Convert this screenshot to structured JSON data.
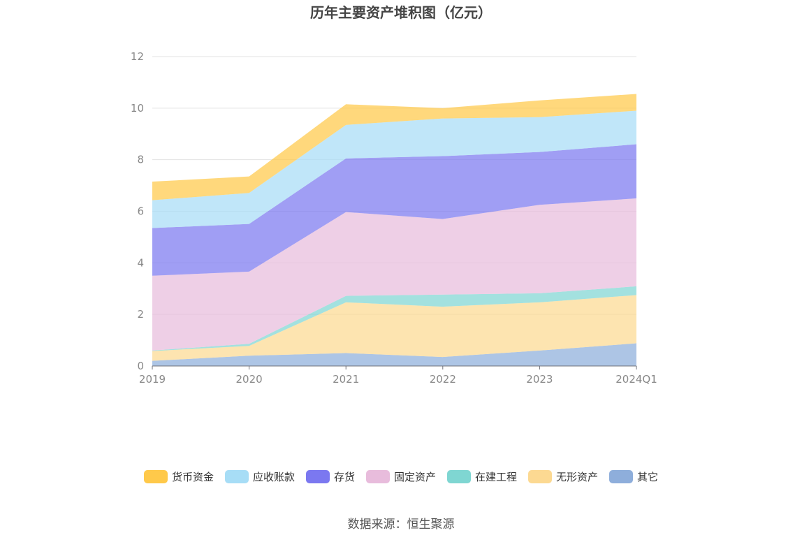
{
  "chart_data": {
    "type": "area",
    "stacked": true,
    "title": "历年主要资产堆积图（亿元）",
    "xlabel": "",
    "ylabel": "",
    "categories": [
      "2019",
      "2020",
      "2021",
      "2022",
      "2023",
      "2024Q1"
    ],
    "ylim": [
      0,
      12
    ],
    "yticks": [
      0,
      2,
      4,
      6,
      8,
      10,
      12
    ],
    "grid": true,
    "legend_position": "bottom",
    "series": [
      {
        "name": "其它",
        "color": "#8eaedb",
        "values": [
          0.2,
          0.4,
          0.5,
          0.35,
          0.6,
          0.88
        ]
      },
      {
        "name": "无形资产",
        "color": "#fcd992",
        "values": [
          0.38,
          0.38,
          1.97,
          1.95,
          1.87,
          1.87
        ]
      },
      {
        "name": "在建工程",
        "color": "#7fd6d2",
        "values": [
          0.02,
          0.08,
          0.25,
          0.47,
          0.35,
          0.34
        ]
      },
      {
        "name": "固定资产",
        "color": "#e8bcdc",
        "values": [
          2.9,
          2.8,
          3.25,
          2.93,
          3.43,
          3.41
        ]
      },
      {
        "name": "存货",
        "color": "#7b78f0",
        "values": [
          1.85,
          1.85,
          2.08,
          2.44,
          2.05,
          2.1
        ]
      },
      {
        "name": "应收账款",
        "color": "#a7ddf6",
        "values": [
          1.08,
          1.2,
          1.3,
          1.46,
          1.35,
          1.3
        ]
      },
      {
        "name": "货币资金",
        "color": "#ffc94a",
        "values": [
          0.72,
          0.64,
          0.8,
          0.4,
          0.65,
          0.65
        ]
      }
    ],
    "legend_order": [
      "货币资金",
      "应收账款",
      "存货",
      "固定资产",
      "在建工程",
      "无形资产",
      "其它"
    ]
  },
  "source": "数据来源：恒生聚源"
}
